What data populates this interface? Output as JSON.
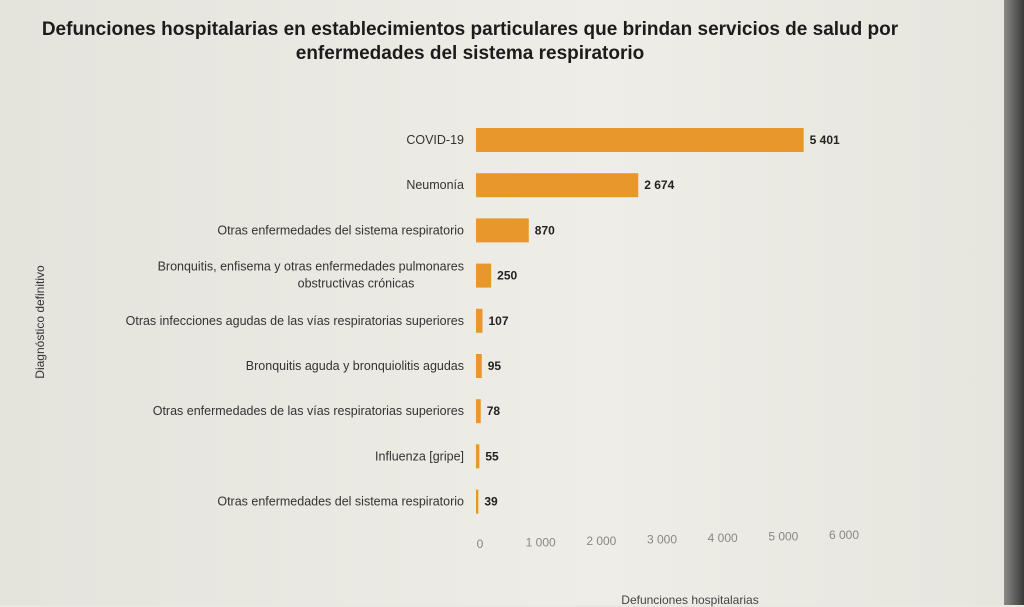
{
  "chart_data": {
    "type": "bar",
    "orientation": "horizontal",
    "title": "Defunciones hospitalarias en establecimientos particulares que brindan servicios de salud por enfermedades del sistema respiratorio",
    "xlabel": "Defunciones hospitalarias",
    "ylabel": "Diagnóstico definitivo",
    "categories": [
      "COVID-19",
      "Neumonía",
      "Otras enfermedades del sistema respiratorio",
      "Bronquitis, enfisema y otras enfermedades pulmonares obstructivas crónicas",
      "Otras infecciones agudas de las vías respiratorias superiores",
      "Bronquitis aguda y bronquiolitis agudas",
      "Otras enfermedades de las vías respiratorias superiores",
      "Influenza [gripe]",
      "Otras enfermedades del sistema respiratorio"
    ],
    "values": [
      5401,
      2674,
      870,
      250,
      107,
      95,
      78,
      55,
      39
    ],
    "value_labels": [
      "5 401",
      "2 674",
      "870",
      "250",
      "107",
      "95",
      "78",
      "55",
      "39"
    ],
    "xlim": [
      0,
      6000
    ],
    "xticks": [
      "0",
      "1 000",
      "2 000",
      "3 000",
      "4 000",
      "5 000",
      "6 000"
    ],
    "grid": false,
    "bar_color": "#e8972c"
  }
}
